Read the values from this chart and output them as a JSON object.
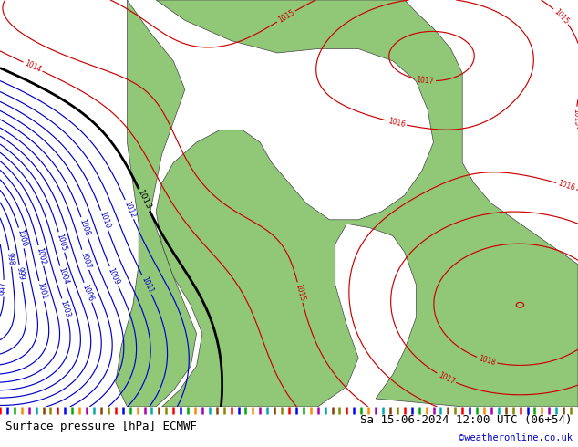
{
  "title_left": "Surface pressure [hPa] ECMWF",
  "title_right": "Sa 15-06-2024 12:00 UTC (06+54)",
  "credit": "©weatheronline.co.uk",
  "bg_color": "#d0d0d0",
  "land_green_color": "#90c878",
  "contour_blue_color": "#0000cc",
  "contour_red_color": "#cc0000",
  "contour_black_color": "#000000",
  "footer_bg": "#ffffff",
  "footer_text_color": "#000000",
  "credit_color": "#0000cc",
  "figsize": [
    6.34,
    4.9
  ],
  "dpi": 100,
  "tick_colors": [
    "#ff0000",
    "#0000ff",
    "#00aa00",
    "#ff8800",
    "#aa00aa",
    "#00aaaa",
    "#884400",
    "#888800"
  ]
}
